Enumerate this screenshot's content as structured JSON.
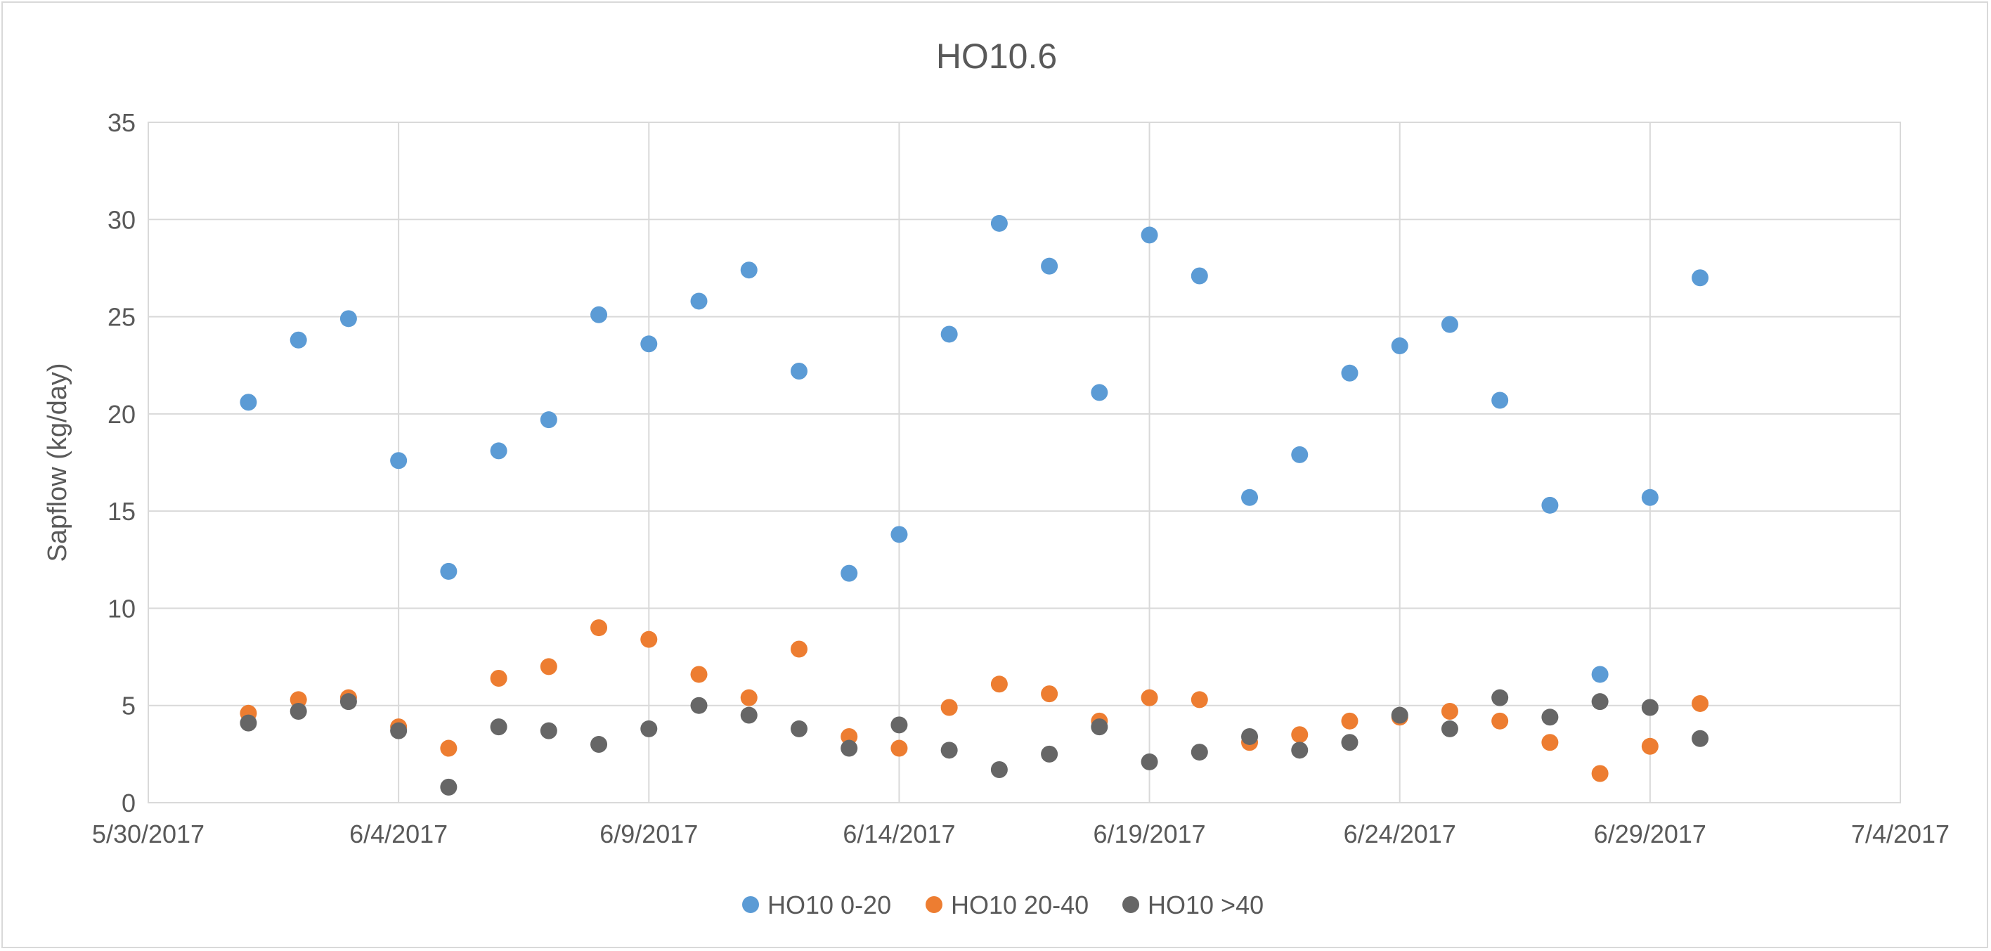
{
  "chart_data": {
    "type": "scatter",
    "title": "HO10.6",
    "xlabel": "",
    "ylabel": "Sapflow (kg/day)",
    "xlim": [
      "5/30/2017",
      "7/4/2017"
    ],
    "ylim": [
      0,
      35
    ],
    "x_ticks": [
      "5/30/2017",
      "6/4/2017",
      "6/9/2017",
      "6/14/2017",
      "6/19/2017",
      "6/24/2017",
      "6/29/2017",
      "7/4/2017"
    ],
    "y_ticks": [
      "0",
      "5",
      "10",
      "15",
      "20",
      "25",
      "30",
      "35"
    ],
    "grid": true,
    "legend_position": "bottom",
    "x": [
      "6/1/2017",
      "6/2/2017",
      "6/3/2017",
      "6/4/2017",
      "6/5/2017",
      "6/6/2017",
      "6/7/2017",
      "6/8/2017",
      "6/9/2017",
      "6/10/2017",
      "6/11/2017",
      "6/12/2017",
      "6/13/2017",
      "6/14/2017",
      "6/15/2017",
      "6/16/2017",
      "6/17/2017",
      "6/18/2017",
      "6/19/2017",
      "6/20/2017",
      "6/21/2017",
      "6/22/2017",
      "6/23/2017",
      "6/24/2017",
      "6/25/2017",
      "6/26/2017",
      "6/27/2017",
      "6/28/2017",
      "6/29/2017",
      "6/30/2017"
    ],
    "series": [
      {
        "name": "HO10 0-20",
        "color": "#5b9bd5",
        "values": [
          20.6,
          23.8,
          24.9,
          17.6,
          11.9,
          18.1,
          19.7,
          25.1,
          23.6,
          25.8,
          27.4,
          22.2,
          11.8,
          13.8,
          24.1,
          29.8,
          27.6,
          21.1,
          29.2,
          27.1,
          15.7,
          17.9,
          22.1,
          23.5,
          24.6,
          20.7,
          15.3,
          6.6,
          15.7,
          27.0
        ]
      },
      {
        "name": "HO10 20-40",
        "color": "#ed7d31",
        "values": [
          4.6,
          5.3,
          5.4,
          3.9,
          2.8,
          6.4,
          7.0,
          9.0,
          8.4,
          6.6,
          5.4,
          7.9,
          3.4,
          2.8,
          4.9,
          6.1,
          5.6,
          4.2,
          5.4,
          5.3,
          3.1,
          3.5,
          4.2,
          4.4,
          4.7,
          4.2,
          3.1,
          1.5,
          2.9,
          5.1
        ]
      },
      {
        "name": "HO10 >40",
        "color": "#666666",
        "values": [
          4.1,
          4.7,
          5.2,
          3.7,
          0.8,
          3.9,
          3.7,
          3.0,
          3.8,
          5.0,
          4.5,
          3.8,
          2.8,
          4.0,
          2.7,
          1.7,
          2.5,
          3.9,
          2.1,
          2.6,
          3.4,
          2.7,
          3.1,
          4.5,
          3.8,
          5.4,
          4.4,
          5.2,
          4.9,
          3.3
        ]
      }
    ]
  }
}
